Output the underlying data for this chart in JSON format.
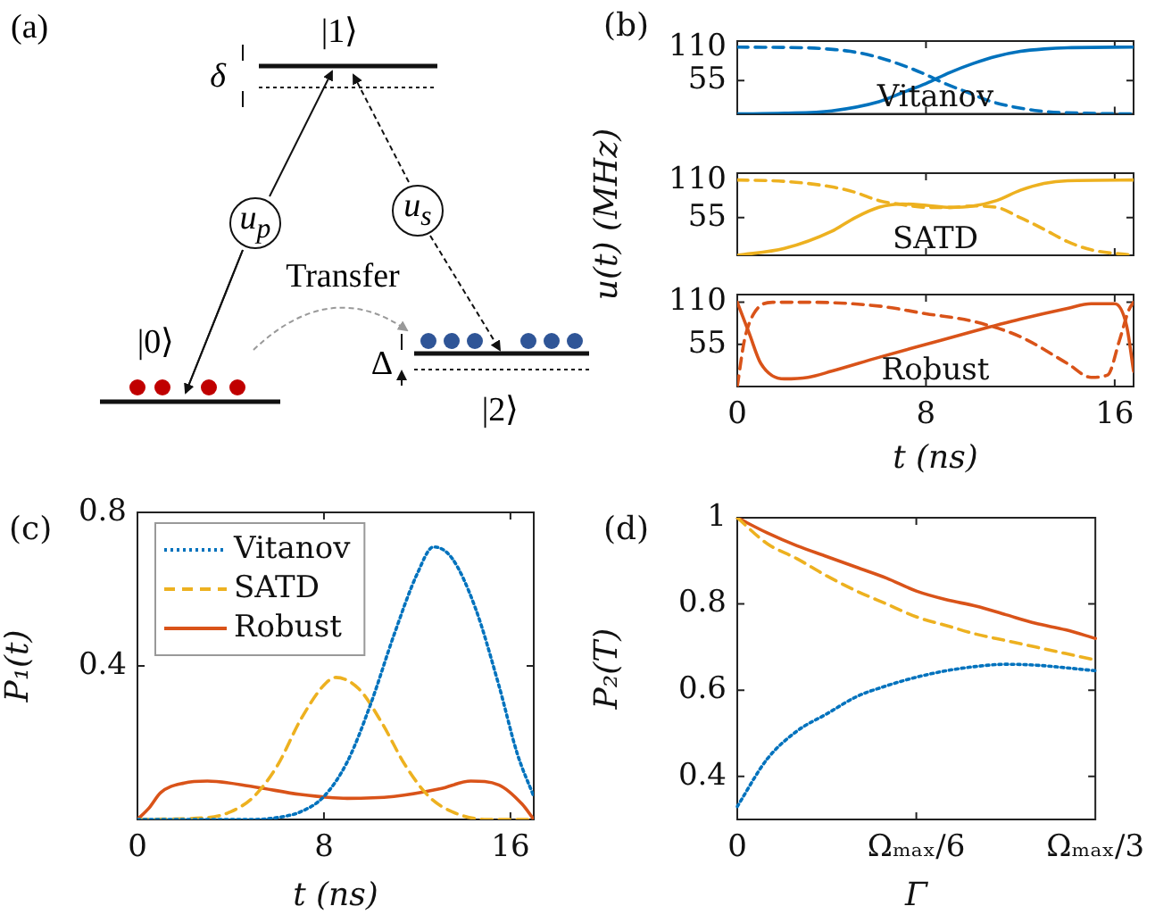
{
  "chart_data": [
    {
      "type": "other",
      "title": "(a)",
      "annotations": [
        "|1⟩",
        "δ",
        "u$_{p}$",
        "u$_{s}$",
        "Transfer",
        "|0⟩",
        "Δ",
        "|2⟩"
      ]
    },
    {
      "type": "line",
      "title": "(b)",
      "xlim": [
        0,
        16.8
      ],
      "ylim": [
        0,
        120
      ],
      "xticks": [
        0,
        8,
        16
      ],
      "yticks": [
        55,
        110
      ],
      "tick_labels": "y",
      "grid": false,
      "annotations": [
        "Vitanov"
      ],
      "series": [
        {
          "color": "#0072bd",
          "line_style": "solid",
          "x": [
            0,
            2,
            4,
            6,
            7,
            8,
            9,
            10,
            11,
            12,
            13,
            14,
            16.8
          ],
          "values": [
            0,
            1,
            5,
            20,
            35,
            50,
            68,
            83,
            95,
            103,
            107,
            109,
            110
          ]
        },
        {
          "color": "#0072bd",
          "line_style": "dashed",
          "x": [
            0,
            2.8,
            3.8,
            4.8,
            5.8,
            6.8,
            7.8,
            8.8,
            9.8,
            10.8,
            12.8,
            14.8,
            16.8
          ],
          "values": [
            110,
            109,
            107,
            103,
            95,
            83,
            68,
            50,
            35,
            20,
            5,
            1,
            0
          ]
        }
      ]
    },
    {
      "type": "line",
      "xlim": [
        0,
        16.8
      ],
      "ylim": [
        0,
        120
      ],
      "xticks": [
        0,
        8,
        16
      ],
      "yticks": [
        55,
        110
      ],
      "tick_labels": "y",
      "grid": false,
      "ylabel": "u(t) (MHz)",
      "annotations": [
        "SATD"
      ],
      "series": [
        {
          "color": "#edb120",
          "line_style": "solid",
          "x": [
            0,
            2,
            4,
            5,
            6,
            7,
            8,
            9,
            10,
            11,
            12,
            13,
            14,
            16.8
          ],
          "values": [
            0,
            10,
            35,
            55,
            70,
            75,
            73,
            70,
            72,
            80,
            95,
            105,
            109,
            110
          ]
        },
        {
          "color": "#edb120",
          "line_style": "dashed",
          "x": [
            0,
            2,
            4,
            5,
            6,
            7,
            8,
            9,
            10,
            11,
            12,
            13,
            14,
            15,
            16.8
          ],
          "values": [
            110,
            108,
            100,
            92,
            80,
            74,
            70,
            70,
            72,
            70,
            55,
            38,
            20,
            8,
            0
          ]
        }
      ]
    },
    {
      "type": "line",
      "xlim": [
        0,
        16.8
      ],
      "ylim": [
        0,
        120
      ],
      "xticks": [
        0,
        8,
        16
      ],
      "yticks": [
        55,
        110
      ],
      "grid": false,
      "xlabel": "t (ns)",
      "annotations": [
        "Robust"
      ],
      "series": [
        {
          "color": "#d95319",
          "line_style": "solid",
          "x": [
            0,
            0.5,
            1,
            2,
            3,
            4,
            6,
            8,
            10,
            12,
            14,
            15,
            16,
            16.5,
            16.8
          ],
          "values": [
            110,
            70,
            30,
            10,
            12,
            20,
            38,
            55,
            72,
            88,
            102,
            108,
            108,
            80,
            20
          ]
        },
        {
          "color": "#d95319",
          "line_style": "dashed",
          "x": [
            0,
            0.3,
            0.7,
            1.5,
            3,
            6,
            8,
            10,
            12,
            14,
            15,
            15.7,
            16.2,
            16.6,
            16.8
          ],
          "values": [
            0,
            60,
            95,
            110,
            110,
            105,
            95,
            85,
            65,
            30,
            12,
            15,
            60,
            100,
            110
          ]
        }
      ]
    },
    {
      "type": "line",
      "title": "(c)",
      "xlim": [
        0,
        17
      ],
      "ylim": [
        0,
        0.8
      ],
      "xticks": [
        0,
        8,
        16
      ],
      "yticks": [
        0.4,
        0.8
      ],
      "grid": false,
      "xlabel": "t (ns)",
      "ylabel": "P₁(t)",
      "legend": "top left",
      "series": [
        {
          "name": "Vitanov",
          "color": "#0072bd",
          "line_style": "dotted",
          "x": [
            0,
            5,
            6,
            7,
            8,
            9,
            10,
            11,
            12,
            12.7,
            13.5,
            14.5,
            15.5,
            16.3,
            17
          ],
          "values": [
            0,
            0,
            0.005,
            0.02,
            0.06,
            0.15,
            0.3,
            0.48,
            0.64,
            0.71,
            0.68,
            0.55,
            0.35,
            0.17,
            0.06
          ]
        },
        {
          "name": "SATD",
          "color": "#edb120",
          "line_style": "dashed",
          "x": [
            0,
            3,
            4,
            5,
            6,
            7,
            8,
            8.5,
            9.5,
            10.5,
            11.5,
            12.5,
            13.5,
            15,
            17
          ],
          "values": [
            0,
            0.005,
            0.02,
            0.06,
            0.14,
            0.26,
            0.35,
            0.37,
            0.34,
            0.25,
            0.14,
            0.06,
            0.02,
            0,
            0
          ]
        },
        {
          "name": "Robust",
          "color": "#d95319",
          "line_style": "solid",
          "x": [
            0,
            0.5,
            1,
            2,
            3,
            5,
            7,
            9,
            11,
            13,
            14.3,
            15.5,
            16.5,
            17
          ],
          "values": [
            0,
            0.03,
            0.07,
            0.095,
            0.1,
            0.085,
            0.065,
            0.055,
            0.06,
            0.08,
            0.1,
            0.09,
            0.04,
            0
          ]
        }
      ]
    },
    {
      "type": "line",
      "title": "(d)",
      "categories": [
        "0",
        null,
        null,
        null,
        null,
        null,
        "Ωₘₐₓ/6",
        null,
        null,
        null,
        null,
        null,
        "Ωₘₐₓ/3"
      ],
      "ylim": [
        0.3,
        1
      ],
      "yticks": [
        0.4,
        0.6,
        0.8,
        1
      ],
      "grid": false,
      "xlabel": "Γ",
      "ylabel": "P₂(T)",
      "series": [
        {
          "color": "#0072bd",
          "line_style": "dotted",
          "values": [
            0.33,
            0.44,
            0.505,
            0.545,
            0.585,
            0.61,
            0.63,
            0.645,
            0.655,
            0.66,
            0.658,
            0.652,
            0.645
          ]
        },
        {
          "color": "#edb120",
          "line_style": "dashed",
          "values": [
            1,
            0.94,
            0.905,
            0.865,
            0.83,
            0.8,
            0.77,
            0.75,
            0.73,
            0.715,
            0.7,
            0.685,
            0.67
          ]
        },
        {
          "color": "#d95319",
          "line_style": "solid",
          "values": [
            1,
            0.965,
            0.935,
            0.91,
            0.885,
            0.86,
            0.83,
            0.81,
            0.795,
            0.775,
            0.755,
            0.74,
            0.72
          ]
        }
      ]
    }
  ]
}
